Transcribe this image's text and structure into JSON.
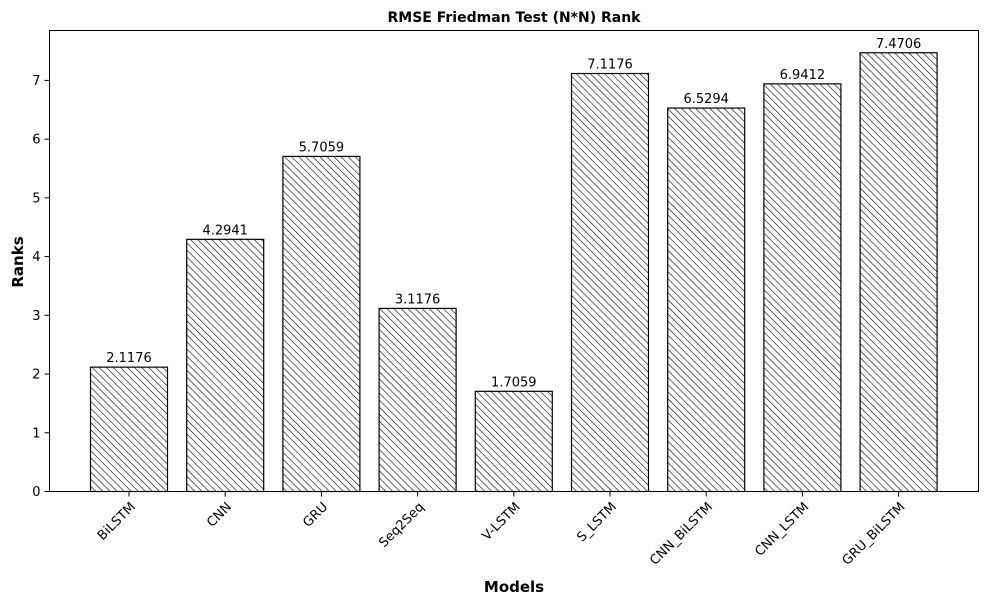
{
  "chart_data": {
    "type": "bar",
    "title": "RMSE Friedman Test (N*N) Rank",
    "xlabel": "Models",
    "ylabel": "Ranks",
    "categories": [
      "BiLSTM",
      "CNN",
      "GRU",
      "Seq2Seq",
      "V-LSTM",
      "S_LSTM",
      "CNN_BiLSTM",
      "CNN_LSTM",
      "GRU_BiLSTM"
    ],
    "values": [
      2.1176,
      4.2941,
      5.7059,
      3.1176,
      1.7059,
      7.1176,
      6.5294,
      6.9412,
      7.4706
    ],
    "data_labels": [
      "2.1176",
      "4.2941",
      "5.7059",
      "3.1176",
      "1.7059",
      "7.1176",
      "6.5294",
      "6.9412",
      "7.4706"
    ],
    "yticks": [
      "0",
      "1",
      "2",
      "3",
      "4",
      "5",
      "6",
      "7"
    ],
    "ylim": [
      0,
      7.85
    ],
    "bar_fill": "hatched diagonal lines",
    "bar_color": "#000000",
    "background": "#ffffff",
    "grid": false,
    "legend": "none"
  }
}
